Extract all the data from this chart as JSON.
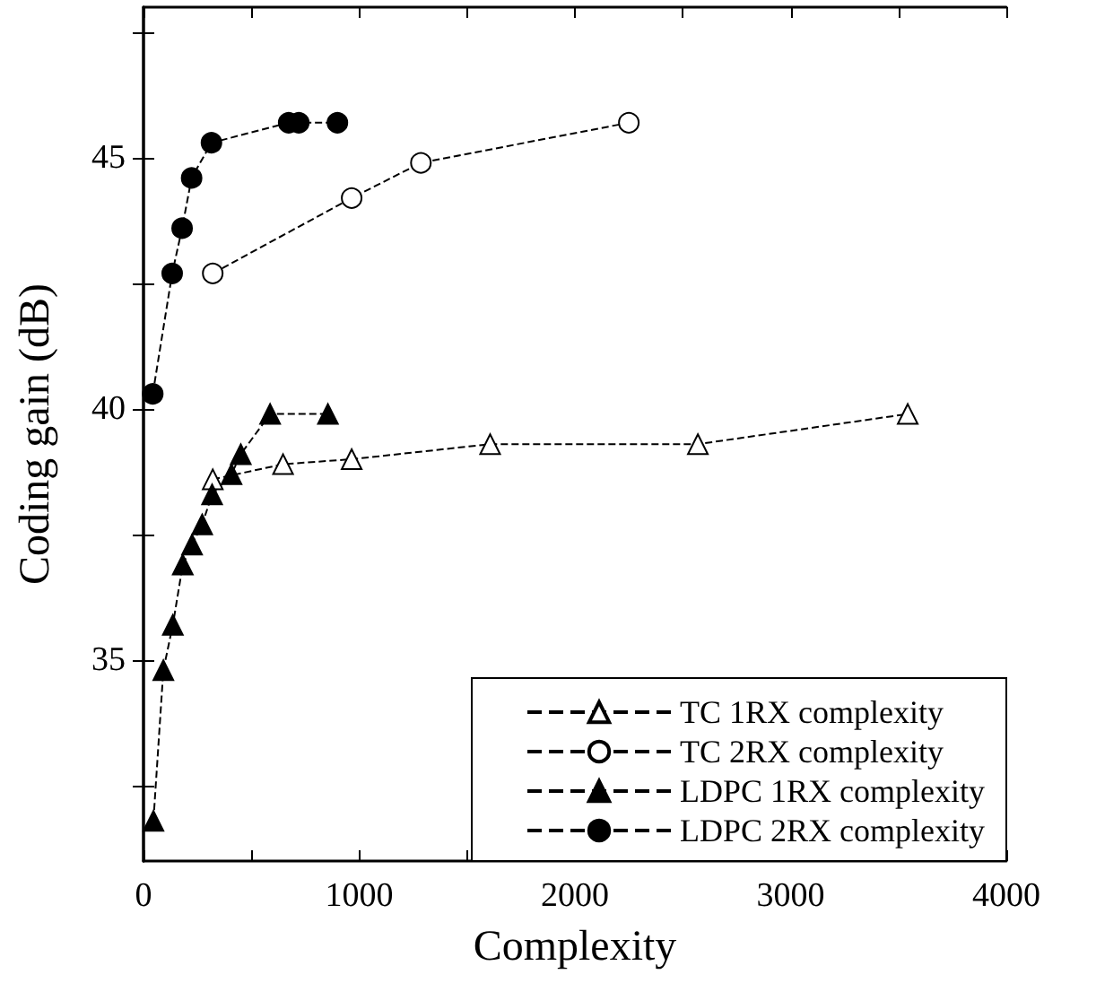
{
  "chart_data": {
    "type": "line",
    "xlabel": "Complexity",
    "ylabel": "Coding gain (dB)",
    "xlim": [
      0,
      4000
    ],
    "xticks": [
      0,
      {
        "value": 500,
        "label": null
      },
      1000,
      {
        "value": 1500,
        "label": null
      },
      2000,
      {
        "value": 2500,
        "label": null
      },
      3000,
      {
        "value": 3500,
        "label": null
      },
      4000
    ],
    "ylim": [
      31,
      48
    ],
    "yticks": [
      {
        "value": 32.5,
        "label": null
      },
      35,
      {
        "value": 37.5,
        "label": null
      },
      40,
      {
        "value": 42.5,
        "label": null
      },
      45,
      {
        "value": 47.5,
        "label": null
      }
    ],
    "grid": false,
    "legend": "bottom right",
    "line_style": "dashed",
    "series": [
      {
        "name": "TC 1RX complexity",
        "color": "#ffffff",
        "marker": "triangle",
        "x": [
          321,
          647,
          965,
          1607,
          2570,
          3543
        ],
        "values": [
          38.6,
          38.9,
          39.0,
          39.3,
          39.3,
          39.9
        ]
      },
      {
        "name": "TC 2RX complexity",
        "color": "#ffffff",
        "marker": "circle",
        "x": [
          321,
          965,
          1286,
          2250
        ],
        "values": [
          42.7,
          44.2,
          44.9,
          45.7
        ]
      },
      {
        "name": "LDPC 1RX complexity",
        "color": "#000000",
        "marker": "triangle",
        "x": [
          46,
          92,
          136,
          182,
          225,
          272,
          318,
          408,
          451,
          587,
          855
        ],
        "values": [
          31.8,
          34.8,
          35.7,
          36.9,
          37.3,
          37.7,
          38.3,
          38.7,
          39.1,
          39.9,
          39.9
        ]
      },
      {
        "name": "LDPC 2RX complexity",
        "color": "#000000",
        "marker": "circle",
        "x": [
          43,
          133,
          179,
          223,
          315,
          673,
          720,
          899
        ],
        "values": [
          40.3,
          42.7,
          43.6,
          44.6,
          45.3,
          45.7,
          45.7,
          45.7
        ]
      }
    ]
  }
}
